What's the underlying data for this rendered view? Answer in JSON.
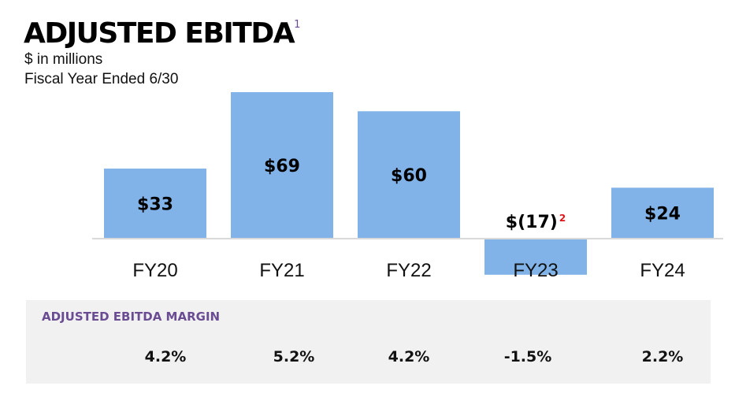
{
  "header": {
    "title": "ADJUSTED EBITDA",
    "title_footnote": "1",
    "subtitle_units": "$ in millions",
    "subtitle_period": "Fiscal Year Ended 6/30"
  },
  "chart_data": {
    "type": "bar",
    "categories": [
      "FY20",
      "FY21",
      "FY22",
      "FY23",
      "FY24"
    ],
    "values": [
      33,
      69,
      60,
      -17,
      24
    ],
    "data_labels": [
      "$33",
      "$69",
      "$60",
      "$(17)",
      "$24"
    ],
    "data_label_footnotes": [
      "",
      "",
      "",
      "2",
      ""
    ],
    "title": "ADJUSTED EBITDA",
    "xlabel": "",
    "ylabel": "",
    "ylim": [
      -20,
      75
    ],
    "grid": false,
    "colors": {
      "bar": "#82b3e8",
      "footnote": "#e0131a"
    }
  },
  "margin_panel": {
    "title": "ADJUSTED EBITDA MARGIN",
    "values": [
      "4.2%",
      "5.2%",
      "4.2%",
      "-1.5%",
      "2.2%"
    ],
    "colors": {
      "title": "#6a4c93",
      "background": "#f1f1f1"
    }
  }
}
